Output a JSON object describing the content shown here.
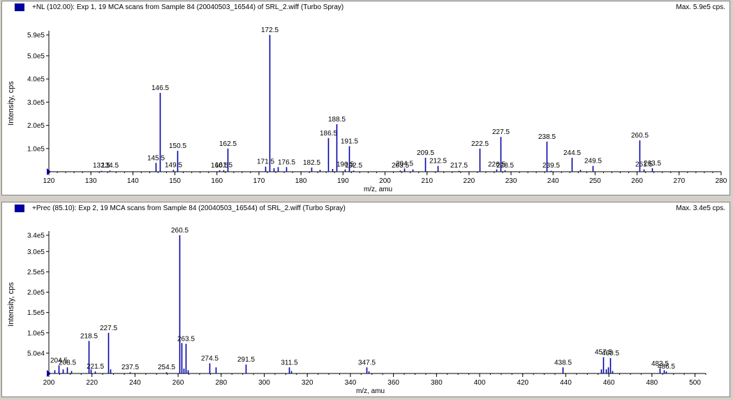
{
  "panels": [
    {
      "title": "+NL (102.00): Exp 1, 19 MCA scans from Sample 84 (20040503_16544) of SRL_2.wiff (Turbo Spray)",
      "max_label": "Max. 5.9e5 cps.",
      "ylabel": "Intensity, cps",
      "xlabel": "m/z, amu",
      "y_tick_labels": [
        "1.0e5",
        "2.0e5",
        "3.0e5",
        "4.0e5",
        "5.0e5",
        "5.9e5"
      ],
      "x_tick_labels": [
        "120",
        "130",
        "140",
        "150",
        "160",
        "170",
        "180",
        "190",
        "200",
        "210",
        "220",
        "230",
        "240",
        "250",
        "260",
        "270",
        "280"
      ],
      "peak_labels": [
        "132.5",
        "134.5",
        "145.5",
        "146.5",
        "149.5",
        "150.5",
        "160.5",
        "161.5",
        "162.5",
        "171.5",
        "172.5",
        "176.5",
        "182.5",
        "186.5",
        "188.5",
        "190.5",
        "191.5",
        "192.5",
        "203.5",
        "204.5",
        "209.5",
        "212.5",
        "217.5",
        "222.5",
        "226.5",
        "227.5",
        "228.5",
        "238.5",
        "239.5",
        "244.5",
        "249.5",
        "260.5",
        "261.5",
        "263.5"
      ]
    },
    {
      "title": "+Prec (85.10): Exp 2, 19 MCA scans from Sample 84 (20040503_16544) of SRL_2.wiff (Turbo Spray)",
      "max_label": "Max. 3.4e5 cps.",
      "ylabel": "Intensity, cps",
      "xlabel": "m/z, amu",
      "y_tick_labels": [
        "5.0e4",
        "1.0e5",
        "1.5e5",
        "2.0e5",
        "2.5e5",
        "3.0e5",
        "3.4e5"
      ],
      "x_tick_labels": [
        "200",
        "220",
        "240",
        "260",
        "280",
        "300",
        "320",
        "340",
        "360",
        "380",
        "400",
        "420",
        "440",
        "460",
        "480",
        "500"
      ],
      "peak_labels": [
        "204.5",
        "208.5",
        "218.5",
        "221.5",
        "227.5",
        "237.5",
        "254.5",
        "260.5",
        "263.5",
        "274.5",
        "291.5",
        "311.5",
        "347.5",
        "438.5",
        "457.5",
        "460.5",
        "483.5",
        "486.5"
      ]
    }
  ],
  "chart_data": [
    {
      "type": "bar",
      "title": "+NL (102.00): Exp 1, 19 MCA scans from Sample 84 (20040503_16544) of SRL_2.wiff (Turbo Spray)",
      "xlabel": "m/z, amu",
      "ylabel": "Intensity, cps",
      "xlim": [
        120,
        280
      ],
      "ylim": [
        0,
        590000
      ],
      "grid": false,
      "series_color": "#0000a8",
      "peaks": [
        {
          "x": 132.5,
          "y": 4000,
          "label": "132.5"
        },
        {
          "x": 134.5,
          "y": 5000,
          "label": "134.5"
        },
        {
          "x": 145.5,
          "y": 38000,
          "label": "145.5"
        },
        {
          "x": 146.5,
          "y": 340000,
          "label": "146.5"
        },
        {
          "x": 149.5,
          "y": 8000,
          "label": "149.5"
        },
        {
          "x": 150.5,
          "y": 90000,
          "label": "150.5"
        },
        {
          "x": 160.5,
          "y": 6000,
          "label": "160.5"
        },
        {
          "x": 161.5,
          "y": 7000,
          "label": "161.5"
        },
        {
          "x": 162.5,
          "y": 100000,
          "label": "162.5"
        },
        {
          "x": 171.5,
          "y": 22000,
          "label": "171.5"
        },
        {
          "x": 172.5,
          "y": 590000,
          "label": "172.5"
        },
        {
          "x": 173.5,
          "y": 15000
        },
        {
          "x": 174.5,
          "y": 20000
        },
        {
          "x": 176.5,
          "y": 20000,
          "label": "176.5"
        },
        {
          "x": 182.5,
          "y": 18000,
          "label": "182.5"
        },
        {
          "x": 184.5,
          "y": 8000
        },
        {
          "x": 186.5,
          "y": 145000,
          "label": "186.5"
        },
        {
          "x": 187.5,
          "y": 12000
        },
        {
          "x": 188.5,
          "y": 205000,
          "label": "188.5"
        },
        {
          "x": 190.5,
          "y": 10000,
          "label": "190.5"
        },
        {
          "x": 191.5,
          "y": 110000,
          "label": "191.5"
        },
        {
          "x": 192.5,
          "y": 5000,
          "label": "192.5"
        },
        {
          "x": 203.5,
          "y": 5000,
          "label": "203.5"
        },
        {
          "x": 204.5,
          "y": 14000,
          "label": "204.5"
        },
        {
          "x": 206.5,
          "y": 10000
        },
        {
          "x": 209.5,
          "y": 60000,
          "label": "209.5"
        },
        {
          "x": 212.5,
          "y": 25000,
          "label": "212.5"
        },
        {
          "x": 217.5,
          "y": 4000,
          "label": "217.5"
        },
        {
          "x": 222.5,
          "y": 100000,
          "label": "222.5"
        },
        {
          "x": 226.5,
          "y": 10000,
          "label": "226.5"
        },
        {
          "x": 227.5,
          "y": 150000,
          "label": "227.5"
        },
        {
          "x": 228.5,
          "y": 6000,
          "label": "228.5"
        },
        {
          "x": 238.5,
          "y": 130000,
          "label": "238.5"
        },
        {
          "x": 239.5,
          "y": 4000,
          "label": "239.5"
        },
        {
          "x": 244.5,
          "y": 60000,
          "label": "244.5"
        },
        {
          "x": 246.5,
          "y": 8000
        },
        {
          "x": 249.5,
          "y": 25000,
          "label": "249.5"
        },
        {
          "x": 260.5,
          "y": 135000,
          "label": "260.5"
        },
        {
          "x": 261.5,
          "y": 10000,
          "label": "261.5"
        },
        {
          "x": 263.5,
          "y": 15000,
          "label": "263.5"
        }
      ]
    },
    {
      "type": "bar",
      "title": "+Prec (85.10): Exp 2, 19 MCA scans from Sample 84 (20040503_16544) of SRL_2.wiff (Turbo Spray)",
      "xlabel": "m/z, amu",
      "ylabel": "Intensity, cps",
      "xlim": [
        200,
        505
      ],
      "ylim": [
        0,
        340000
      ],
      "grid": false,
      "series_color": "#0000a8",
      "peaks": [
        {
          "x": 202.5,
          "y": 8000
        },
        {
          "x": 204.5,
          "y": 20000,
          "label": "204.5"
        },
        {
          "x": 206.5,
          "y": 10000
        },
        {
          "x": 208.5,
          "y": 15000,
          "label": "208.5"
        },
        {
          "x": 210.5,
          "y": 6000
        },
        {
          "x": 218.5,
          "y": 80000,
          "label": "218.5"
        },
        {
          "x": 219.5,
          "y": 10000
        },
        {
          "x": 221.5,
          "y": 5000,
          "label": "221.5"
        },
        {
          "x": 227.5,
          "y": 100000,
          "label": "227.5"
        },
        {
          "x": 228.5,
          "y": 10000
        },
        {
          "x": 237.5,
          "y": 3000,
          "label": "237.5"
        },
        {
          "x": 254.5,
          "y": 3000,
          "label": "254.5"
        },
        {
          "x": 260.5,
          "y": 340000,
          "label": "260.5"
        },
        {
          "x": 261.5,
          "y": 75000
        },
        {
          "x": 262.5,
          "y": 12000
        },
        {
          "x": 263.5,
          "y": 73000,
          "label": "263.5"
        },
        {
          "x": 264.5,
          "y": 8000
        },
        {
          "x": 274.5,
          "y": 25000,
          "label": "274.5"
        },
        {
          "x": 277.5,
          "y": 15000
        },
        {
          "x": 291.5,
          "y": 22000,
          "label": "291.5"
        },
        {
          "x": 311.5,
          "y": 15000,
          "label": "311.5"
        },
        {
          "x": 312.5,
          "y": 6000
        },
        {
          "x": 347.5,
          "y": 15000,
          "label": "347.5"
        },
        {
          "x": 348.5,
          "y": 5000
        },
        {
          "x": 438.5,
          "y": 15000,
          "label": "438.5"
        },
        {
          "x": 456.5,
          "y": 10000
        },
        {
          "x": 457.5,
          "y": 40000,
          "label": "457.5"
        },
        {
          "x": 458.5,
          "y": 10000
        },
        {
          "x": 459.5,
          "y": 15000
        },
        {
          "x": 460.5,
          "y": 38000,
          "label": "460.5"
        },
        {
          "x": 461.5,
          "y": 6000
        },
        {
          "x": 483.5,
          "y": 12000,
          "label": "483.5"
        },
        {
          "x": 485.5,
          "y": 8000
        },
        {
          "x": 486.5,
          "y": 5000,
          "label": "486.5"
        }
      ]
    }
  ]
}
